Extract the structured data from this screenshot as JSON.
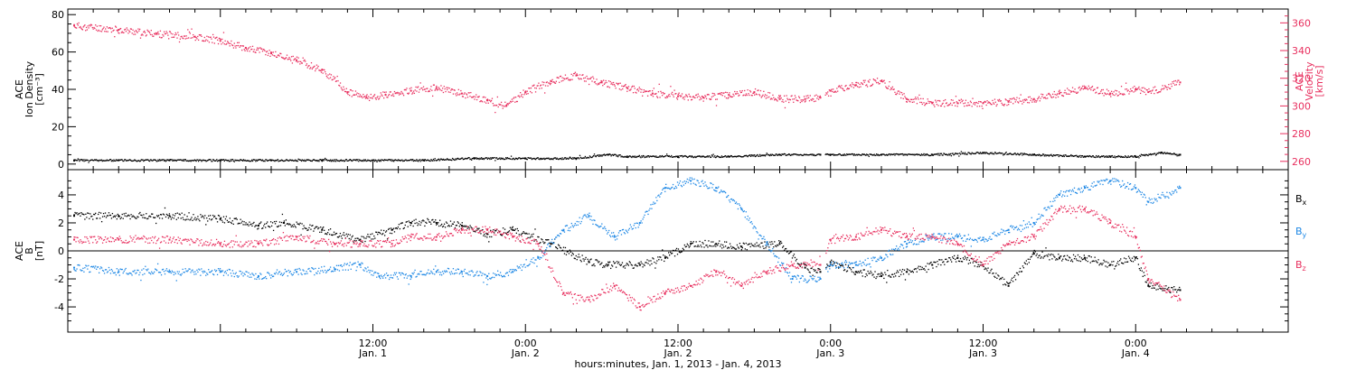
{
  "chart_data": [
    {
      "type": "scatter",
      "panel": "top",
      "ylabel_lines": [
        "ACE",
        "Ion Density"
      ],
      "yunit": "[cm⁻³]",
      "ylim": [
        -3,
        83
      ],
      "y_ticks": [
        0,
        20,
        40,
        60,
        80
      ],
      "right_ylabel_lines": [
        "ACE",
        "Velocity"
      ],
      "right_yunit": "[km/s]",
      "right_ylim": [
        254,
        370
      ],
      "right_ticks": [
        260,
        280,
        300,
        320,
        340,
        360
      ],
      "series": [
        {
          "axis": "left",
          "color": "#000000",
          "x": [
            -11.5,
            -8,
            -4,
            0,
            4,
            8,
            12,
            16,
            20,
            24,
            28,
            30.5,
            32,
            36,
            40,
            44,
            47.2,
            48,
            52,
            56,
            60,
            64,
            68,
            70,
            72,
            74,
            75.5
          ],
          "y": [
            2,
            2,
            2,
            2,
            2,
            2,
            2,
            2,
            3,
            3,
            3,
            5,
            4,
            4,
            4,
            5,
            5,
            5,
            5,
            5,
            6,
            5,
            4,
            4,
            4,
            6,
            5
          ]
        },
        {
          "axis": "right",
          "color": "#e8305f",
          "x": [
            -11.5,
            -8,
            -5,
            -2,
            0,
            2,
            4,
            6,
            8,
            10,
            11.5,
            13,
            15,
            17,
            19,
            21,
            22.5,
            24,
            26,
            28,
            30,
            32,
            34,
            36,
            38,
            40,
            42,
            44,
            46,
            47.2,
            48,
            50,
            52,
            54,
            56,
            58,
            60,
            62,
            64,
            66,
            68,
            70,
            72,
            73,
            75.5
          ],
          "y": [
            358,
            355,
            352,
            350,
            347,
            342,
            338,
            333,
            326,
            310,
            306,
            308,
            311,
            313,
            309,
            304,
            300,
            310,
            318,
            322,
            317,
            313,
            309,
            307,
            306,
            308,
            310,
            305,
            305,
            306,
            311,
            315,
            318,
            305,
            302,
            302,
            302,
            303,
            305,
            309,
            313,
            309,
            312,
            310,
            317
          ]
        }
      ]
    },
    {
      "type": "scatter",
      "panel": "bottom",
      "ylabel_lines": [
        "ACE",
        "B"
      ],
      "yunit": "[nT]",
      "ylim": [
        -5.8,
        5.8
      ],
      "y_ticks": [
        -4,
        -2,
        0,
        2,
        4
      ],
      "zero_line": true,
      "series": [
        {
          "name": "B",
          "sub": "x",
          "color": "#000000",
          "x": [
            -11.5,
            -8,
            -4,
            0,
            3,
            5,
            8,
            11,
            13.5,
            15,
            17,
            19,
            21,
            23,
            26,
            29,
            30.5,
            33,
            35,
            37,
            39,
            41,
            44,
            46,
            47.2,
            48,
            50,
            52,
            54,
            56,
            58,
            60,
            62,
            64,
            66,
            68,
            70,
            72,
            73,
            75.5
          ],
          "y": [
            2.5,
            2.5,
            2.5,
            2.3,
            1.8,
            2.0,
            1.5,
            0.8,
            1.5,
            2.0,
            2.0,
            1.8,
            1.2,
            1.5,
            0.5,
            -0.8,
            -1.0,
            -1.0,
            -0.5,
            0.5,
            0.5,
            0.3,
            0.5,
            -1.2,
            -1.5,
            -0.8,
            -1.5,
            -1.8,
            -1.5,
            -1.0,
            -0.5,
            -1.0,
            -2.5,
            -0.2,
            -0.5,
            -0.5,
            -1.0,
            -0.5,
            -2.5,
            -2.8
          ]
        },
        {
          "name": "B",
          "sub": "y",
          "color": "#1e88e5",
          "x": [
            -11.5,
            -8,
            -4,
            0,
            3,
            6,
            9,
            11,
            12.5,
            15,
            17,
            19,
            21,
            23,
            25,
            27,
            29,
            31,
            33,
            35,
            37,
            39,
            41,
            43,
            45,
            47.2,
            48,
            50,
            52,
            54,
            56,
            58,
            60,
            62,
            64,
            66,
            68,
            70,
            72,
            73,
            75.5
          ],
          "y": [
            -1.2,
            -1.5,
            -1.5,
            -1.5,
            -1.8,
            -1.5,
            -1.3,
            -1.0,
            -1.8,
            -1.8,
            -1.5,
            -1.5,
            -1.8,
            -1.5,
            -0.5,
            1.5,
            2.5,
            1.0,
            2.0,
            4.5,
            5.0,
            4.5,
            3.0,
            0.5,
            -2.0,
            -2.0,
            -1.0,
            -1.0,
            -0.5,
            0.5,
            1.0,
            1.0,
            0.8,
            1.5,
            2.0,
            4.0,
            4.5,
            5.0,
            4.5,
            3.5,
            4.5
          ]
        },
        {
          "name": "B",
          "sub": "z",
          "color": "#e8305f",
          "x": [
            -11.5,
            -8,
            -4,
            0,
            3,
            6,
            9,
            11,
            13.5,
            15,
            17,
            19,
            21,
            23,
            25,
            27,
            29,
            31,
            33,
            35,
            37,
            39,
            41,
            43,
            45,
            47.2,
            48,
            50,
            52,
            54,
            56,
            58,
            60,
            62,
            64,
            66,
            68,
            70,
            72,
            73,
            75.5
          ],
          "y": [
            0.8,
            0.8,
            0.8,
            0.5,
            0.5,
            1.0,
            0.5,
            0.5,
            0.5,
            1.0,
            1.0,
            1.5,
            1.5,
            1.0,
            0.5,
            -3.0,
            -3.5,
            -2.5,
            -4.0,
            -3.0,
            -2.5,
            -1.5,
            -2.5,
            -1.5,
            -1.0,
            -1.0,
            0.8,
            1.0,
            1.5,
            1.0,
            1.0,
            0.5,
            -1.0,
            0.5,
            1.0,
            3.0,
            3.0,
            2.0,
            1.0,
            -2.0,
            -3.5
          ]
        }
      ]
    }
  ],
  "x_axis": {
    "unit": "hours since 2013-01-01 00:00",
    "range": [
      -12,
      84
    ],
    "ticks": [
      {
        "x": 12,
        "time": "12:00",
        "date": "Jan. 1"
      },
      {
        "x": 24,
        "time": "0:00",
        "date": "Jan. 2"
      },
      {
        "x": 36,
        "time": "12:00",
        "date": "Jan. 2"
      },
      {
        "x": 48,
        "time": "0:00",
        "date": "Jan. 3"
      },
      {
        "x": 60,
        "time": "12:00",
        "date": "Jan. 3"
      },
      {
        "x": 72,
        "time": "0:00",
        "date": "Jan. 4"
      }
    ],
    "label": "hours:minutes, Jan.  1, 2013 - Jan.  4, 2013"
  }
}
